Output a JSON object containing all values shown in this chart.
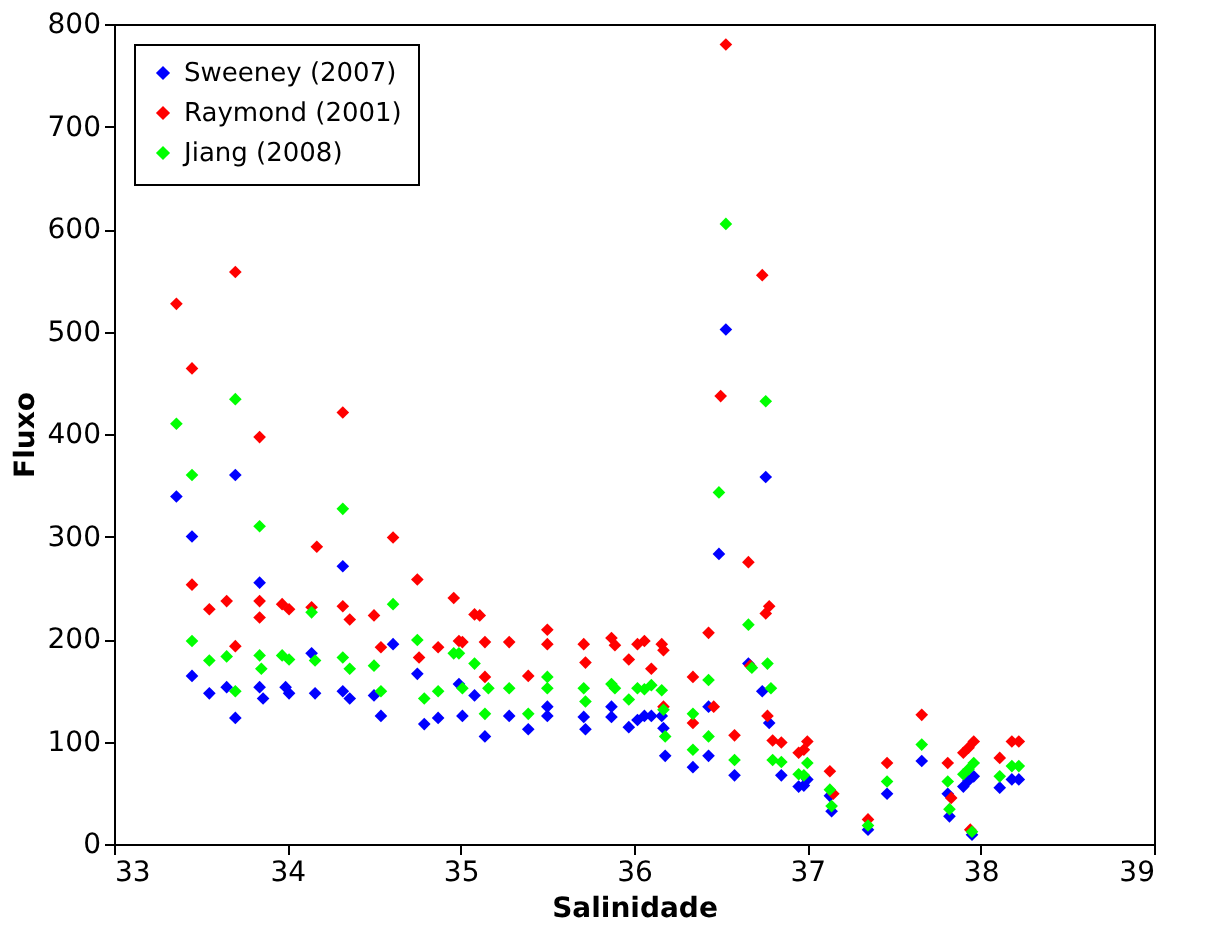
{
  "chart_data": {
    "type": "scatter",
    "xlabel": "Salinidade",
    "ylabel": "Fluxo",
    "xlim": [
      33,
      39
    ],
    "xticks": [
      33,
      34,
      35,
      36,
      37,
      38,
      39
    ],
    "ylim": [
      0,
      800
    ],
    "yticks": [
      0,
      100,
      200,
      300,
      400,
      500,
      600,
      700,
      800
    ],
    "grid": false,
    "legend": "top left",
    "marker": "diamond",
    "series": [
      {
        "name": "Sweeney (2007)",
        "color": "#0000ff",
        "x": [
          33.36,
          33.45,
          33.45,
          33.55,
          33.65,
          33.7,
          33.7,
          33.84,
          33.84,
          33.86,
          33.99,
          34.01,
          34.14,
          34.16,
          34.32,
          34.32,
          34.36,
          34.5,
          34.54,
          34.61,
          34.75,
          34.79,
          34.87,
          34.99,
          35.01,
          35.08,
          35.14,
          35.28,
          35.39,
          35.5,
          35.5,
          35.71,
          35.72,
          35.87,
          35.87,
          35.97,
          36.02,
          36.06,
          36.1,
          36.16,
          36.17,
          36.18,
          36.34,
          36.43,
          36.43,
          36.49,
          36.53,
          36.58,
          36.66,
          36.74,
          36.76,
          36.78,
          36.8,
          36.85,
          36.95,
          36.98,
          37.0,
          37.13,
          37.14,
          37.35,
          37.46,
          37.66,
          37.81,
          37.82,
          37.9,
          37.93,
          37.96,
          37.95,
          38.11,
          38.18,
          38.22
        ],
        "values": [
          339,
          300,
          164,
          147,
          153,
          360,
          123,
          255,
          153,
          142,
          153,
          147,
          186,
          147,
          271,
          149,
          142,
          145,
          125,
          195,
          166,
          117,
          123,
          156,
          125,
          145,
          105,
          125,
          112,
          134,
          125,
          124,
          112,
          134,
          124,
          114,
          121,
          125,
          125,
          125,
          113,
          86,
          75,
          134,
          86,
          283,
          502,
          67,
          176,
          149,
          358,
          118,
          null,
          67,
          56,
          57,
          63,
          47,
          32,
          14,
          49,
          81,
          49,
          27,
          56,
          62,
          66,
          9,
          55,
          63,
          63
        ]
      },
      {
        "name": "Raymond (2001)",
        "color": "#ff0000",
        "x": [
          33.36,
          33.45,
          33.45,
          33.55,
          33.65,
          33.7,
          33.7,
          33.84,
          33.84,
          33.84,
          33.97,
          34.01,
          34.14,
          34.17,
          34.32,
          34.32,
          34.36,
          34.5,
          34.54,
          34.61,
          34.75,
          34.76,
          34.87,
          34.96,
          34.99,
          35.01,
          35.08,
          35.11,
          35.14,
          35.14,
          35.28,
          35.39,
          35.5,
          35.5,
          35.71,
          35.72,
          35.87,
          35.89,
          35.97,
          36.02,
          36.06,
          36.1,
          36.16,
          36.17,
          36.17,
          36.34,
          36.34,
          36.43,
          36.46,
          36.5,
          36.53,
          36.58,
          36.66,
          36.67,
          36.74,
          36.76,
          36.78,
          36.77,
          36.8,
          36.85,
          36.95,
          36.98,
          37.0,
          37.13,
          37.15,
          37.35,
          37.46,
          37.66,
          37.81,
          37.83,
          37.9,
          37.93,
          37.96,
          37.94,
          38.11,
          38.18,
          38.22
        ],
        "values": [
          527,
          464,
          253,
          229,
          237,
          558,
          193,
          397,
          237,
          221,
          234,
          229,
          231,
          290,
          421,
          232,
          219,
          223,
          192,
          299,
          258,
          182,
          192,
          240,
          198,
          197,
          224,
          223,
          197,
          163,
          197,
          164,
          209,
          195,
          195,
          177,
          201,
          194,
          180,
          195,
          198,
          171,
          195,
          189,
          134,
          163,
          118,
          206,
          134,
          437,
          780,
          106,
          275,
          174,
          555,
          225,
          232,
          125,
          101,
          99,
          89,
          92,
          100,
          71,
          49,
          24,
          79,
          126,
          79,
          45,
          89,
          94,
          100,
          14,
          84,
          100,
          100
        ]
      },
      {
        "name": "Jiang (2008)",
        "color": "#00ff00",
        "x": [
          33.36,
          33.45,
          33.45,
          33.55,
          33.65,
          33.7,
          33.7,
          33.84,
          33.84,
          33.85,
          33.97,
          34.01,
          34.14,
          34.16,
          34.32,
          34.32,
          34.36,
          34.5,
          34.54,
          34.61,
          34.75,
          34.79,
          34.87,
          34.96,
          34.99,
          35.01,
          35.08,
          35.14,
          35.16,
          35.28,
          35.39,
          35.5,
          35.5,
          35.71,
          35.72,
          35.87,
          35.89,
          35.97,
          36.02,
          36.06,
          36.1,
          36.16,
          36.17,
          36.18,
          36.34,
          36.34,
          36.43,
          36.43,
          36.49,
          36.53,
          36.58,
          36.66,
          36.68,
          36.76,
          36.77,
          36.79,
          36.8,
          36.85,
          36.95,
          36.98,
          37.0,
          37.13,
          37.14,
          37.35,
          37.46,
          37.66,
          37.81,
          37.82,
          37.9,
          37.93,
          37.96,
          37.95,
          38.11,
          38.18,
          38.22
        ],
        "values": [
          410,
          360,
          198,
          179,
          183,
          434,
          149,
          310,
          184,
          171,
          184,
          180,
          226,
          179,
          327,
          182,
          171,
          174,
          149,
          234,
          199,
          142,
          149,
          186,
          186,
          152,
          176,
          127,
          152,
          152,
          127,
          163,
          152,
          152,
          139,
          156,
          152,
          141,
          152,
          151,
          155,
          150,
          131,
          105,
          127,
          92,
          160,
          105,
          343,
          605,
          82,
          214,
          172,
          432,
          176,
          152,
          82,
          80,
          68,
          67,
          79,
          53,
          37,
          18,
          61,
          97,
          61,
          34,
          68,
          73,
          79,
          12,
          66,
          76,
          76
        ]
      }
    ]
  }
}
